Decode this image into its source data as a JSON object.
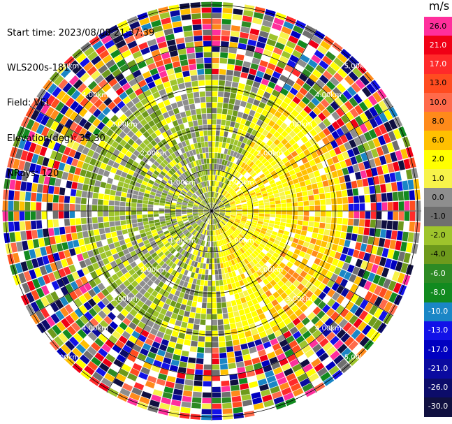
{
  "info": {
    "start_time": "Start time: 2023/08/08 21:37:39",
    "instrument": "WLS200s-181",
    "field": "Field: VEL",
    "elevation": "Elevation(deg): 35.30",
    "nrays": "NRays: 120"
  },
  "colorbar": {
    "unit": "m/s",
    "bins": [
      {
        "label": "26.0",
        "color": "#ff2f9c"
      },
      {
        "label": "21.0",
        "color": "#f00016"
      },
      {
        "label": "17.0",
        "color": "#ff2a2a"
      },
      {
        "label": "13.0",
        "color": "#ff4c20"
      },
      {
        "label": "10.0",
        "color": "#ff6a4a"
      },
      {
        "label": "8.0",
        "color": "#ff8a1a"
      },
      {
        "label": "6.0",
        "color": "#ffc000"
      },
      {
        "label": "2.0",
        "color": "#ffff00"
      },
      {
        "label": "1.0",
        "color": "#f7f34a"
      },
      {
        "label": "0.0",
        "color": "#8e8e8e"
      },
      {
        "label": "-1.0",
        "color": "#6f6f6f"
      },
      {
        "label": "-2.0",
        "color": "#9ec42c"
      },
      {
        "label": "-4.0",
        "color": "#6e9a1c"
      },
      {
        "label": "-6.0",
        "color": "#2d8a24"
      },
      {
        "label": "-8.0",
        "color": "#118a1f"
      },
      {
        "label": "-10.0",
        "color": "#1a86c6"
      },
      {
        "label": "-13.0",
        "color": "#1212e8"
      },
      {
        "label": "-17.0",
        "color": "#0000c0"
      },
      {
        "label": "-21.0",
        "color": "#0a0aa0"
      },
      {
        "label": "-26.0",
        "color": "#0c0c6a"
      },
      {
        "label": "-30.0",
        "color": "#101040"
      }
    ]
  },
  "ppi": {
    "n_rays": 120,
    "range_rings": [
      "1.00km",
      "2.00km",
      "3.00km",
      "4.00km",
      "5.00km"
    ],
    "ring_label_angles_deg": [
      135,
      45,
      225,
      315
    ]
  }
}
